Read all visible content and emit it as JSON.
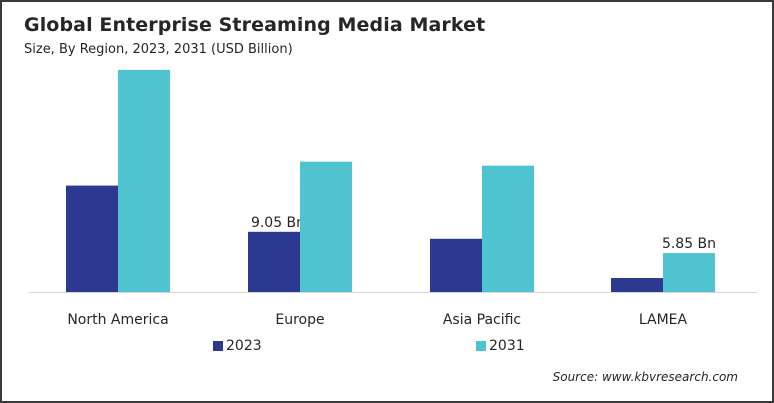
{
  "chart_data": {
    "type": "bar",
    "title": "Global Enterprise Streaming Media Market",
    "subtitle": "Size, By Region, 2023, 2031 (USD Billion)",
    "categories": [
      "North America",
      "Europe",
      "Asia Pacific",
      "LAMEA"
    ],
    "series": [
      {
        "name": "2023",
        "color": "#2b3990",
        "values": [
          16.0,
          9.05,
          8.0,
          2.1
        ]
      },
      {
        "name": "2031",
        "color": "#4fc3cf",
        "values": [
          33.4,
          19.6,
          19.0,
          5.85
        ]
      }
    ],
    "annotations": [
      {
        "category": "Europe",
        "series": "2023",
        "text": "9.05 Bn"
      },
      {
        "category": "LAMEA",
        "series": "2031",
        "text": "5.85 Bn"
      }
    ],
    "xlabel": "",
    "ylabel": "",
    "ylim": [
      0,
      35
    ],
    "grid": false,
    "legend": "bottom",
    "source": "Source: www.kbvresearch.com"
  }
}
